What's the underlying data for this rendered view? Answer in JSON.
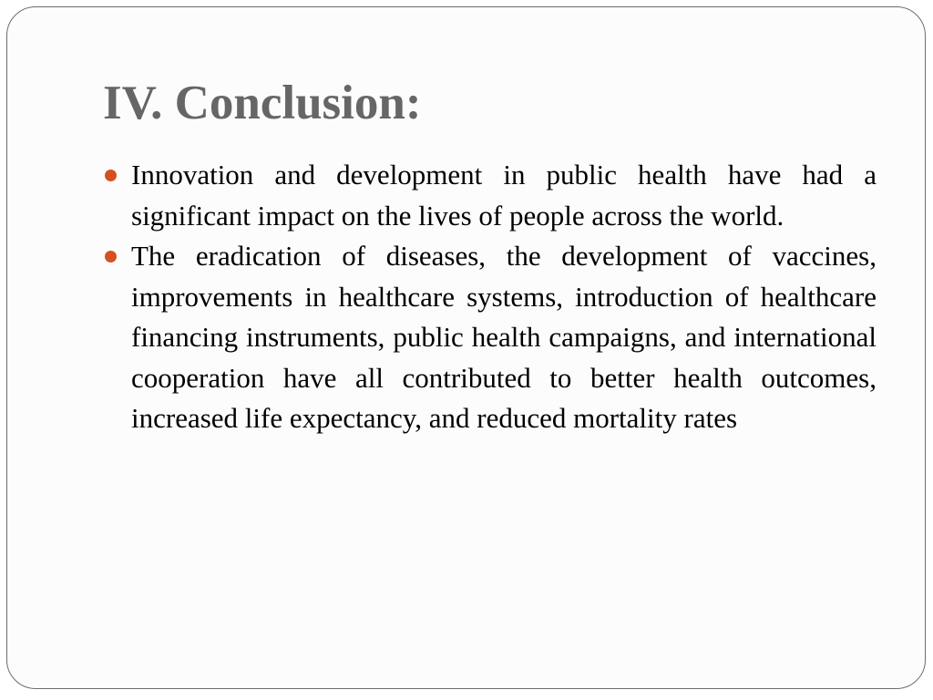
{
  "slide": {
    "title": "IV. Conclusion:",
    "bullet_color": "#d5501f",
    "bullets": [
      {
        "text": "Innovation and development in public health have had a significant impact on the lives of people across the world."
      },
      {
        "text": "The eradication of diseases, the development of vaccines, improvements in healthcare systems, introduction of healthcare financing instruments, public health campaigns, and international cooperation have all contributed to better health outcomes, increased life expectancy, and reduced mortality rates"
      }
    ]
  }
}
